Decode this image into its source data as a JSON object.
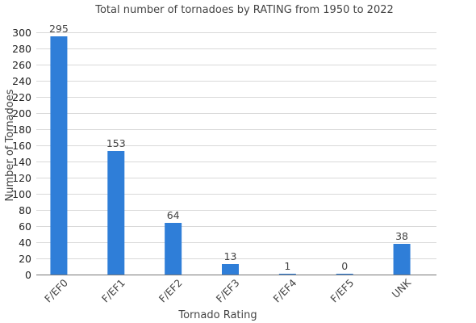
{
  "chart_data": {
    "type": "bar",
    "title": "Total number of tornadoes by RATING from 1950 to 2022",
    "xlabel": "Tornado Rating",
    "ylabel": "Number of Tornadoes",
    "categories": [
      "F/EF0",
      "F/EF1",
      "F/EF2",
      "F/EF3",
      "F/EF4",
      "F/EF5",
      "UNK"
    ],
    "values": [
      295,
      153,
      64,
      13,
      1,
      0,
      38
    ],
    "data_labels": [
      "295",
      "153",
      "64",
      "13",
      "1",
      "0",
      "38"
    ],
    "y_ticks": [
      "0",
      "20",
      "40",
      "60",
      "80",
      "100",
      "120",
      "140",
      "160",
      "180",
      "200",
      "220",
      "240",
      "260",
      "280",
      "300"
    ],
    "ylim": [
      0,
      300
    ],
    "grid": true,
    "legend": "none",
    "bar_color": "#2f7ed8"
  }
}
